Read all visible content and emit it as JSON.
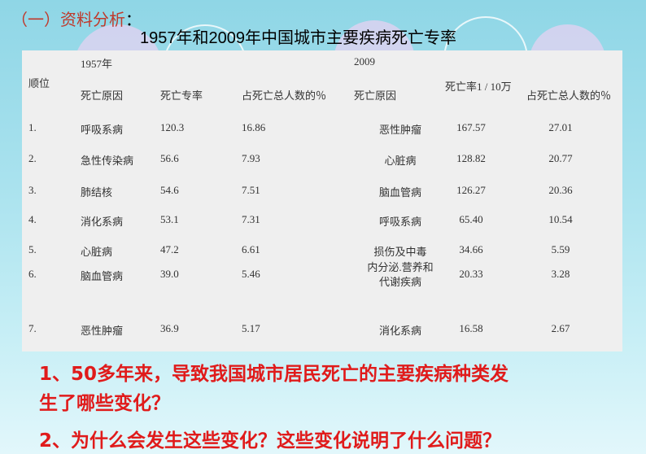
{
  "heading": {
    "text": "（一）资料分析",
    "colon": "："
  },
  "title": "1957年和2009年中国城市主要疾病死亡专率",
  "table": {
    "rank_header": "顺位",
    "year1": "1957年",
    "year2": "2009",
    "headers": [
      "死亡原因",
      "死亡专率",
      "占死亡总人数的％",
      "死亡原因",
      "死亡率1 / 10万",
      "占死亡总人数的％"
    ],
    "rows": [
      {
        "rank": "1.",
        "cause1957": "呼吸系病",
        "rate1957": "120.3",
        "pct1957": "16.86",
        "cause2009": "恶性肿瘤",
        "rate2009": "167.57",
        "pct2009": "27.01"
      },
      {
        "rank": "2.",
        "cause1957": "急性传染病",
        "rate1957": "56.6",
        "pct1957": "7.93",
        "cause2009": "心脏病",
        "rate2009": "128.82",
        "pct2009": "20.77"
      },
      {
        "rank": "3.",
        "cause1957": "肺结核",
        "rate1957": "54.6",
        "pct1957": "7.51",
        "cause2009": "脑血管病",
        "rate2009": "126.27",
        "pct2009": "20.36"
      },
      {
        "rank": "4.",
        "cause1957": "消化系病",
        "rate1957": "53.1",
        "pct1957": "7.31",
        "cause2009": "呼吸系病",
        "rate2009": "65.40",
        "pct2009": "10.54"
      },
      {
        "rank": "5.",
        "cause1957": "心脏病",
        "rate1957": "47.2",
        "pct1957": "6.61",
        "cause2009": "损伤及中毒",
        "rate2009": "34.66",
        "pct2009": "5.59"
      },
      {
        "rank": "6.",
        "cause1957": "脑血管病",
        "rate1957": "39.0",
        "pct1957": "5.46",
        "cause2009": "内分泌.营养和代谢疾病",
        "rate2009": "20.33",
        "pct2009": "3.28"
      },
      {
        "rank": "7.",
        "cause1957": "恶性肿瘤",
        "rate1957": "36.9",
        "pct1957": "5.17",
        "cause2009": "消化系病",
        "rate2009": "16.58",
        "pct2009": "2.67"
      }
    ]
  },
  "questions": [
    "1、50多年来，导致我国城市居民死亡的主要疾病种类发",
    "生了哪些变化？",
    "2、为什么会发生这些变化？这些变化说明了什么问题？"
  ]
}
